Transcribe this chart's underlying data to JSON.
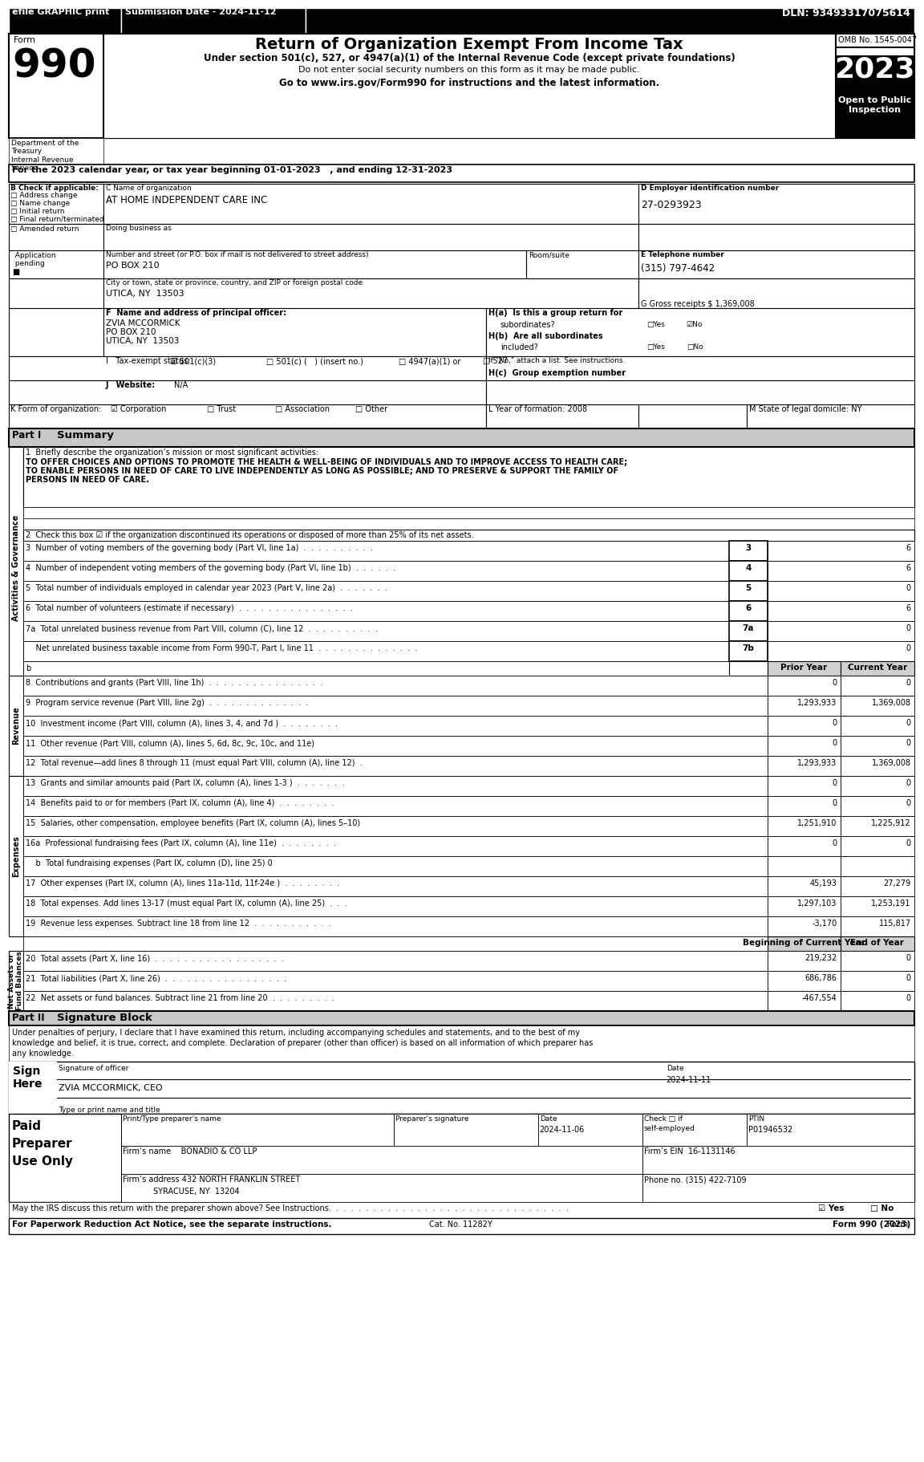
{
  "title": "Return of Organization Exempt From Income Tax",
  "form_number": "990",
  "year": "2023",
  "omb": "OMB No. 1545-0047",
  "dln": "DLN: 93493317075614",
  "submission_date": "Submission Date - 2024-11-12",
  "efile_text": "efile GRAPHIC print",
  "under_section": "Under section 501(c), 527, or 4947(a)(1) of the Internal Revenue Code (except private foundations)",
  "do_not_enter": "Do not enter social security numbers on this form as it may be made public.",
  "go_to": "Go to www.irs.gov/Form990 for instructions and the latest information.",
  "for_the": "For the 2023 calendar year, or tax year beginning 01-01-2023   , and ending 12-31-2023",
  "b_check": "B Check if applicable:",
  "address_change": "Address change",
  "name_change": "Name change",
  "initial_return": "Initial return",
  "final_return": "Final return/terminated",
  "amended_return": "Amended return",
  "application_pending": "Application\npending",
  "c_name_label": "C Name of organization",
  "org_name": "AT HOME INDEPENDENT CARE INC",
  "doing_business": "Doing business as",
  "street_label": "Number and street (or P.O. box if mail is not delivered to street address)",
  "street": "PO BOX 210",
  "room_suite": "Room/suite",
  "city_label": "City or town, state or province, country, and ZIP or foreign postal code",
  "city": "UTICA, NY  13503",
  "d_ein_label": "D Employer identification number",
  "ein": "27-0293923",
  "e_phone_label": "E Telephone number",
  "phone": "(315) 797-4642",
  "g_gross": "G Gross receipts $ 1,369,008",
  "f_label": "F  Name and address of principal officer:",
  "officer_name": "ZVIA MCCORMICK",
  "officer_addr1": "PO BOX 210",
  "officer_addr2": "UTICA, NY  13503",
  "ha_label": "H(a)  Is this a group return for",
  "ha_text": "subordinates?",
  "hb_label": "H(b)  Are all subordinates",
  "hb_text": "included?",
  "hb_note": "If \"No,\" attach a list. See instructions.",
  "hc_label": "H(c)  Group exemption number",
  "i_label": "I   Tax-exempt status:",
  "i_501c3": "501(c)(3)",
  "i_501c": "501(c) (   ) (insert no.)",
  "i_4947": "4947(a)(1) or",
  "i_527": "527",
  "j_label": "J   Website:",
  "j_website": "N/A",
  "k_label": "K Form of organization:",
  "k_corp": "Corporation",
  "k_trust": "Trust",
  "k_assoc": "Association",
  "k_other": "Other",
  "l_label": "L Year of formation: 2008",
  "m_label": "M State of legal domicile: NY",
  "part1_label": "Part I",
  "part1_title": "Summary",
  "line1_label": "1  Briefly describe the organization’s mission or most significant activities:",
  "line1_text": "TO OFFER CHOICES AND OPTIONS TO PROMOTE THE HEALTH & WELL-BEING OF INDIVIDUALS AND TO IMPROVE ACCESS TO HEALTH CARE;\nTO ENABLE PERSONS IN NEED OF CARE TO LIVE INDEPENDENTLY AS LONG AS POSSIBLE; AND TO PRESERVE & SUPPORT THE FAMILY OF\nPERSONS IN NEED OF CARE.",
  "line2_text": "2  Check this box ☑ if the organization discontinued its operations or disposed of more than 25% of its net assets.",
  "line3_text": "3  Number of voting members of the governing body (Part VI, line 1a)  .  .  .  .  .  .  .  .  .  .",
  "line3_num": "3",
  "line3_val": "6",
  "line4_text": "4  Number of independent voting members of the governing body (Part VI, line 1b)  .  .  .  .  .  .",
  "line4_num": "4",
  "line4_val": "6",
  "line5_text": "5  Total number of individuals employed in calendar year 2023 (Part V, line 2a)  .  .  .  .  .  .  .",
  "line5_num": "5",
  "line5_val": "0",
  "line6_text": "6  Total number of volunteers (estimate if necessary)  .  .  .  .  .  .  .  .  .  .  .  .  .  .  .  .",
  "line6_num": "6",
  "line6_val": "6",
  "line7a_text": "7a  Total unrelated business revenue from Part VIII, column (C), line 12  .  .  .  .  .  .  .  .  .  .",
  "line7a_num": "7a",
  "line7a_val": "0",
  "line7b_text": "    Net unrelated business taxable income from Form 990-T, Part I, line 11  .  .  .  .  .  .  .  .  .  .  .  .  .  .",
  "line7b_num": "7b",
  "line7b_val": "0",
  "prior_year": "Prior Year",
  "current_year": "Current Year",
  "line8_text": "8  Contributions and grants (Part VIII, line 1h)  .  .  .  .  .  .  .  .  .  .  .  .  .  .  .  .",
  "line8_prior": "0",
  "line8_curr": "0",
  "line9_text": "9  Program service revenue (Part VIII, line 2g)  .  .  .  .  .  .  .  .  .  .  .  .  .  .",
  "line9_prior": "1,293,933",
  "line9_curr": "1,369,008",
  "line10_text": "10  Investment income (Part VIII, column (A), lines 3, 4, and 7d )  .  .  .  .  .  .  .  .",
  "line10_prior": "0",
  "line10_curr": "0",
  "line11_text": "11  Other revenue (Part VIII, column (A), lines 5, 6d, 8c, 9c, 10c, and 11e)",
  "line11_prior": "0",
  "line11_curr": "0",
  "line12_text": "12  Total revenue—add lines 8 through 11 (must equal Part VIII, column (A), line 12)  .",
  "line12_prior": "1,293,933",
  "line12_curr": "1,369,008",
  "line13_text": "13  Grants and similar amounts paid (Part IX, column (A), lines 1-3 )  .  .  .  .  .  .  .",
  "line13_prior": "0",
  "line13_curr": "0",
  "line14_text": "14  Benefits paid to or for members (Part IX, column (A), line 4)  .  .  .  .  .  .  .  .",
  "line14_prior": "0",
  "line14_curr": "0",
  "line15_text": "15  Salaries, other compensation, employee benefits (Part IX, column (A), lines 5–10)",
  "line15_prior": "1,251,910",
  "line15_curr": "1,225,912",
  "line16a_text": "16a  Professional fundraising fees (Part IX, column (A), line 11e)  .  .  .  .  .  .  .  .",
  "line16a_prior": "0",
  "line16a_curr": "0",
  "line16b_text": "    b  Total fundraising expenses (Part IX, column (D), line 25) 0",
  "line17_text": "17  Other expenses (Part IX, column (A), lines 11a-11d, 11f-24e )  .  .  .  .  .  .  .  .",
  "line17_prior": "45,193",
  "line17_curr": "27,279",
  "line18_text": "18  Total expenses. Add lines 13-17 (must equal Part IX, column (A), line 25)  .  .  .",
  "line18_prior": "1,297,103",
  "line18_curr": "1,253,191",
  "line19_text": "19  Revenue less expenses. Subtract line 18 from line 12  .  .  .  .  .  .  .  .  .  .  .",
  "line19_prior": "-3,170",
  "line19_curr": "115,817",
  "beg_curr_year": "Beginning of Current Year",
  "end_of_year": "End of Year",
  "line20_text": "20  Total assets (Part X, line 16)  .  .  .  .  .  .  .  .  .  .  .  .  .  .  .  .  .  .",
  "line20_beg": "219,232",
  "line20_end": "0",
  "line21_text": "21  Total liabilities (Part X, line 26)  .  .  .  .  .  .  .  .  .  .  .  .  .  .  .  .  .",
  "line21_beg": "686,786",
  "line21_end": "0",
  "line22_text": "22  Net assets or fund balances. Subtract line 21 from line 20  .  .  .  .  .  .  .  .  .",
  "line22_beg": "-467,554",
  "line22_end": "0",
  "part2_label": "Part II",
  "part2_title": "Signature Block",
  "sig_text": "Under penalties of perjury, I declare that I have examined this return, including accompanying schedules and statements, and to the best of my\nknowledge and belief, it is true, correct, and complete. Declaration of preparer (other than officer) is based on all information of which preparer has\nany knowledge.",
  "sig_officer": "Signature of officer",
  "sig_date_label": "Date",
  "sig_date_val": "2024-11-11",
  "sig_name": "ZVIA MCCORMICK, CEO",
  "sig_type": "Type or print name and title",
  "prep_name_label": "Print/Type preparer’s name",
  "prep_sig_label": "Preparer’s signature",
  "prep_date_label": "Date",
  "prep_date_val": "2024-11-06",
  "prep_check": "Check □ if\nself-employed",
  "prep_ptin_label": "PTIN",
  "prep_ptin": "P01946532",
  "prep_firm_label": "Firm’s name",
  "prep_firm_name": "BONADIO & CO LLP",
  "prep_ein_label": "Firm’s EIN",
  "prep_ein": "16-1131146",
  "prep_addr_label": "Firm’s address",
  "prep_addr": "432 NORTH FRANKLIN STREET",
  "prep_city": "SYRACUSE, NY  13204",
  "prep_phone": "Phone no. (315) 422-7109",
  "discuss": "May the IRS discuss this return with the preparer shown above? See Instructions.",
  "bottom_left": "For Paperwork Reduction Act Notice, see the separate instructions.",
  "cat_no": "Cat. No. 11282Y",
  "form_990_bottom": "Form 990 (2023)"
}
